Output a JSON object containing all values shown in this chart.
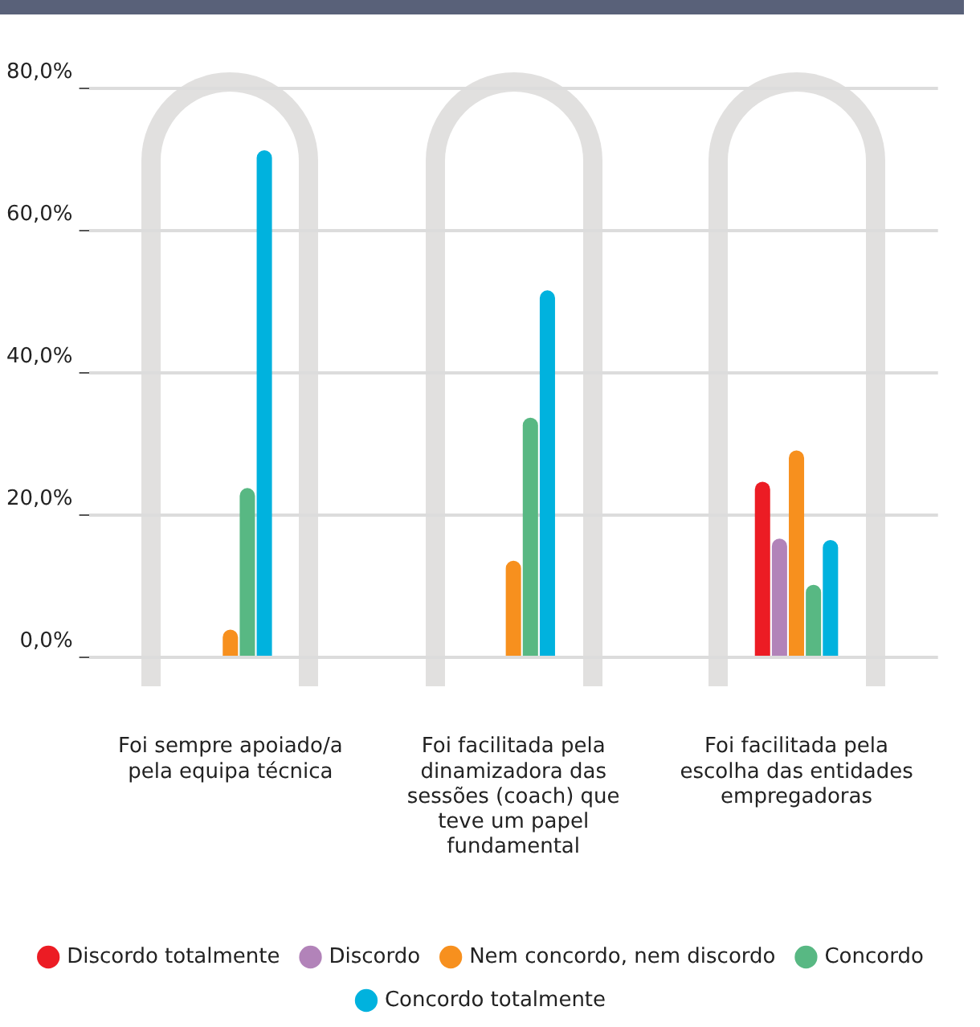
{
  "chart_data": {
    "type": "bar",
    "categories": [
      "Foi sempre apoiado/a pela equipa técnica",
      "Foi facilitada pela dinamizadora das sessões (coach) que teve um papel fundamental",
      "Foi facilitada pela escolha das entidades empregadoras"
    ],
    "series": [
      {
        "name": "Discordo totalmente",
        "color": "#ec1c24",
        "values": [
          0,
          0,
          24.7
        ]
      },
      {
        "name": "Discordo",
        "color": "#b283b9",
        "values": [
          0,
          0,
          16.7
        ]
      },
      {
        "name": "Nem concordo, nem discordo",
        "color": "#f7901e",
        "values": [
          3.9,
          13.6,
          29.1
        ]
      },
      {
        "name": "Concordo",
        "color": "#58b883",
        "values": [
          23.8,
          33.7,
          10.2
        ]
      },
      {
        "name": "Concordo totalmente",
        "color": "#00b2de",
        "values": [
          71.3,
          51.6,
          16.5
        ]
      }
    ],
    "ylim": [
      0,
      80
    ],
    "yticks": [
      {
        "value": 0,
        "label": "0,0%"
      },
      {
        "value": 20,
        "label": "20,0%"
      },
      {
        "value": 40,
        "label": "40,0%"
      },
      {
        "value": 60,
        "label": "60,0%"
      },
      {
        "value": 80,
        "label": "80,0%"
      }
    ],
    "grid": "y",
    "legend": "bottom"
  }
}
